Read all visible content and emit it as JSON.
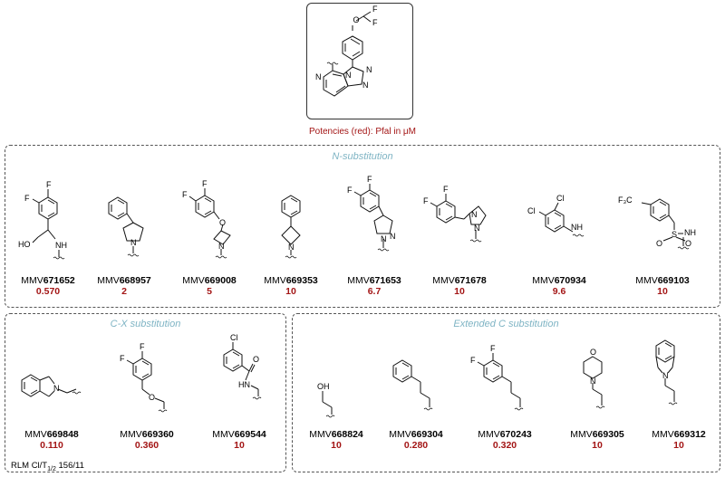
{
  "core": {
    "atoms": {
      "o": "O",
      "f1": "F",
      "f2": "F",
      "n1": "N",
      "n2": "N",
      "n3": "N",
      "n4": "N"
    },
    "potency_note": "Potencies (red): Pfal in μM"
  },
  "panels": {
    "n_sub": "N-substitution",
    "cx_sub": "C-X substitution",
    "ext_sub": "Extended C substitution"
  },
  "compounds": [
    {
      "prefix": "MMV",
      "num": "671652",
      "potency": "0.570",
      "atoms": [
        "F",
        "F",
        "HO",
        "NH"
      ]
    },
    {
      "prefix": "MMV",
      "num": "668957",
      "potency": "2",
      "atoms": [
        "N"
      ]
    },
    {
      "prefix": "MMV",
      "num": "669008",
      "potency": "5",
      "atoms": [
        "F",
        "F",
        "O",
        "N"
      ]
    },
    {
      "prefix": "MMV",
      "num": "669353",
      "potency": "10",
      "atoms": [
        "N"
      ]
    },
    {
      "prefix": "MMV",
      "num": "671653",
      "potency": "6.7",
      "atoms": [
        "F",
        "F",
        "N",
        "N"
      ]
    },
    {
      "prefix": "MMV",
      "num": "671678",
      "potency": "10",
      "atoms": [
        "F",
        "F",
        "N",
        "N"
      ]
    },
    {
      "prefix": "MMV",
      "num": "670934",
      "potency": "9.6",
      "atoms": [
        "Cl",
        "Cl",
        "NH"
      ]
    },
    {
      "prefix": "MMV",
      "num": "669103",
      "potency": "10",
      "atoms": [
        "F₃C",
        "S",
        "O",
        "O",
        "NH"
      ]
    },
    {
      "prefix": "MMV",
      "num": "669848",
      "potency": "0.110",
      "atoms": [
        "N"
      ]
    },
    {
      "prefix": "MMV",
      "num": "669360",
      "potency": "0.360",
      "atoms": [
        "F",
        "F",
        "O"
      ]
    },
    {
      "prefix": "MMV",
      "num": "669544",
      "potency": "10",
      "atoms": [
        "Cl",
        "O",
        "HN"
      ]
    },
    {
      "prefix": "MMV",
      "num": "668824",
      "potency": "10",
      "atoms": [
        "OH"
      ]
    },
    {
      "prefix": "MMV",
      "num": "669304",
      "potency": "0.280",
      "atoms": []
    },
    {
      "prefix": "MMV",
      "num": "670243",
      "potency": "0.320",
      "atoms": [
        "F",
        "F"
      ]
    },
    {
      "prefix": "MMV",
      "num": "669305",
      "potency": "10",
      "atoms": [
        "O",
        "N"
      ]
    },
    {
      "prefix": "MMV",
      "num": "669312",
      "potency": "10",
      "atoms": [
        "N"
      ]
    }
  ],
  "notes": {
    "rlm_prefix": "RLM Cl/T",
    "rlm_sub": "1/2",
    "rlm_value": " 156/11"
  }
}
